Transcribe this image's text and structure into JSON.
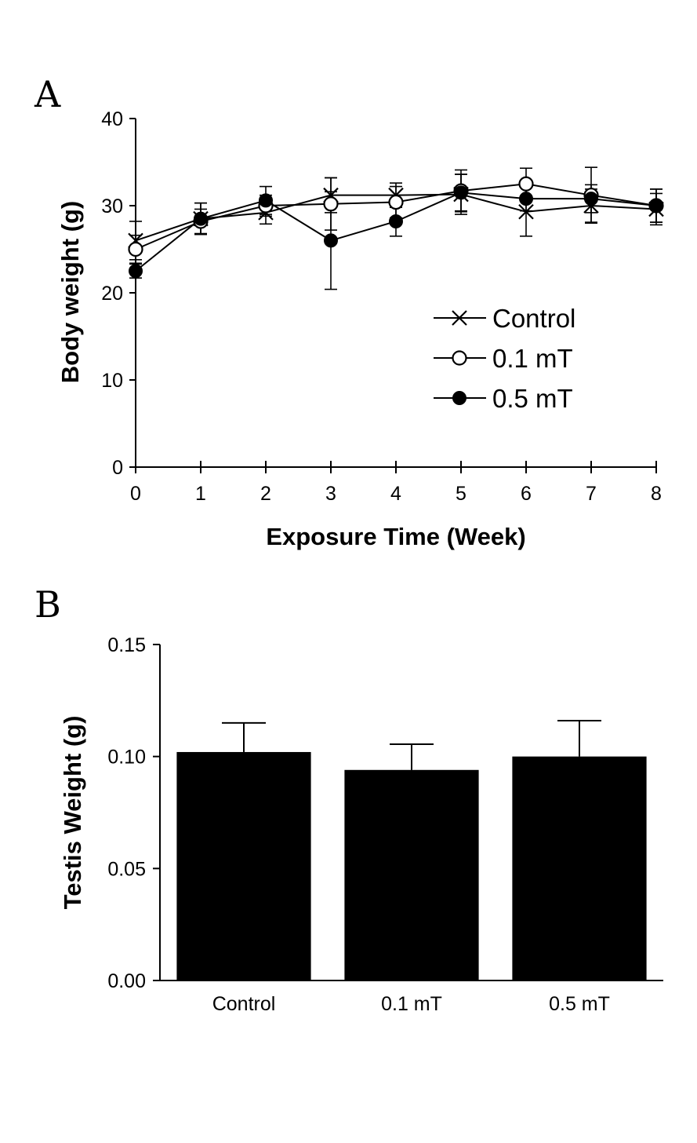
{
  "chart_data": [
    {
      "panel_label": "A",
      "type": "line",
      "xlabel": "Exposure Time (Week)",
      "ylabel": "Body weight (g)",
      "x": [
        0,
        1,
        2,
        3,
        4,
        5,
        6,
        7,
        8
      ],
      "x_ticks": [
        "0",
        "1",
        "2",
        "3",
        "4",
        "5",
        "6",
        "7",
        "8"
      ],
      "y_ticks": [
        "0",
        "10",
        "20",
        "30",
        "40"
      ],
      "xlim": [
        0,
        8
      ],
      "ylim": [
        0,
        40
      ],
      "grid": false,
      "legend_position": "right",
      "series": [
        {
          "name": "Control",
          "marker": "x",
          "values": [
            26.0,
            28.5,
            29.2,
            31.2,
            31.2,
            31.3,
            29.3,
            30.0,
            29.6
          ],
          "errors": [
            2.2,
            1.8,
            1.3,
            2.0,
            1.4,
            2.3,
            2.8,
            1.9,
            1.8
          ]
        },
        {
          "name": "0.1 mT",
          "marker": "open-circle",
          "values": [
            25.0,
            28.2,
            30.0,
            30.2,
            30.4,
            31.7,
            32.5,
            31.2,
            30.0
          ],
          "errors": [
            1.6,
            1.4,
            1.2,
            3.0,
            1.8,
            2.4,
            1.8,
            3.2,
            1.9
          ]
        },
        {
          "name": "0.5 mT",
          "marker": "filled-circle",
          "values": [
            22.5,
            28.5,
            30.6,
            26.0,
            28.2,
            31.5,
            30.8,
            30.8,
            30.0
          ],
          "errors": [
            0.8,
            1.8,
            1.6,
            5.6,
            1.7,
            2.1,
            1.4,
            1.6,
            1.9
          ]
        }
      ]
    },
    {
      "panel_label": "B",
      "type": "bar",
      "xlabel": "",
      "ylabel": "Testis Weight (g)",
      "categories": [
        "Control",
        "0.1 mT",
        "0.5 mT"
      ],
      "values": [
        0.102,
        0.094,
        0.1
      ],
      "errors": [
        0.013,
        0.0115,
        0.016
      ],
      "y_ticks": [
        "0.00",
        "0.05",
        "0.10",
        "0.15"
      ],
      "ylim": [
        0,
        0.15
      ],
      "grid": false,
      "bar_color": "#000000"
    }
  ]
}
